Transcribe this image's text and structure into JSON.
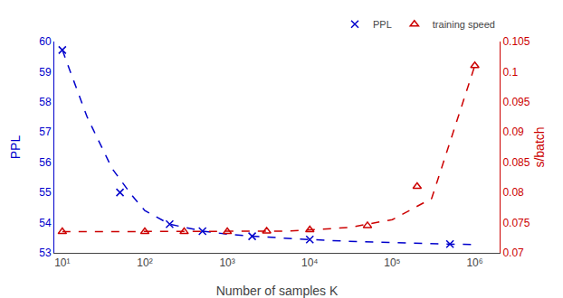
{
  "chart_data": {
    "type": "line",
    "xlabel": "Number of samples K",
    "ylabel": "PPL",
    "y2label": "s/batch",
    "log": "x",
    "grid": false,
    "legend": "upper right",
    "xlim": [
      8,
      2000000
    ],
    "xticks": [
      {
        "value": 10,
        "label": "10¹"
      },
      {
        "value": 100,
        "label": "10²"
      },
      {
        "value": 1000,
        "label": "10³"
      },
      {
        "value": 10000,
        "label": "10⁴"
      },
      {
        "value": 100000,
        "label": "10⁵"
      },
      {
        "value": 1000000,
        "label": "10⁶"
      }
    ],
    "ylim": [
      53.0,
      60.0
    ],
    "yticks": [
      53,
      54,
      55,
      56,
      57,
      58,
      59,
      60
    ],
    "y2lim": [
      0.07,
      0.105
    ],
    "y2ticks": [
      0.07,
      0.075,
      0.08,
      0.085,
      0.09,
      0.095,
      0.1,
      0.105
    ],
    "ycolor": "#0000cc",
    "y2color": "#cc0000",
    "series": [
      {
        "type": "line",
        "line_style": "dashed",
        "color": "#0000cc",
        "x": [
          10,
          20,
          40,
          70,
          100,
          200,
          500,
          1000,
          2000,
          5000,
          10000,
          30000,
          100000,
          300000,
          1000000
        ],
        "values": [
          59.72,
          57.5,
          55.8,
          54.9,
          54.4,
          53.95,
          53.72,
          53.62,
          53.55,
          53.48,
          53.44,
          53.38,
          53.34,
          53.3,
          53.27
        ]
      },
      {
        "name": "PPL",
        "type": "scatter",
        "marker": "x",
        "color": "#0000cc",
        "x": [
          10,
          50,
          200,
          500,
          2000,
          10000,
          500000
        ],
        "values": [
          59.72,
          55.0,
          53.95,
          53.72,
          53.55,
          53.44,
          53.29
        ]
      },
      {
        "type": "line",
        "line_style": "dashed",
        "color": "#cc0000",
        "axis": "y2",
        "x": [
          10,
          20,
          50,
          100,
          200,
          500,
          1000,
          2000,
          5000,
          10000,
          30000,
          100000,
          300000,
          1000000
        ],
        "values": [
          0.0735,
          0.0735,
          0.0735,
          0.0735,
          0.0735,
          0.0735,
          0.0735,
          0.0736,
          0.0736,
          0.0738,
          0.0742,
          0.0755,
          0.079,
          0.101
        ]
      },
      {
        "name": "training speed",
        "type": "scatter",
        "marker": "triangle-open",
        "color": "#cc0000",
        "axis": "y2",
        "x": [
          10,
          100,
          300,
          1000,
          3000,
          10000,
          50000,
          200000,
          1000000
        ],
        "values": [
          0.0735,
          0.0735,
          0.0735,
          0.0735,
          0.0736,
          0.0738,
          0.0745,
          0.081,
          0.101
        ]
      }
    ]
  }
}
